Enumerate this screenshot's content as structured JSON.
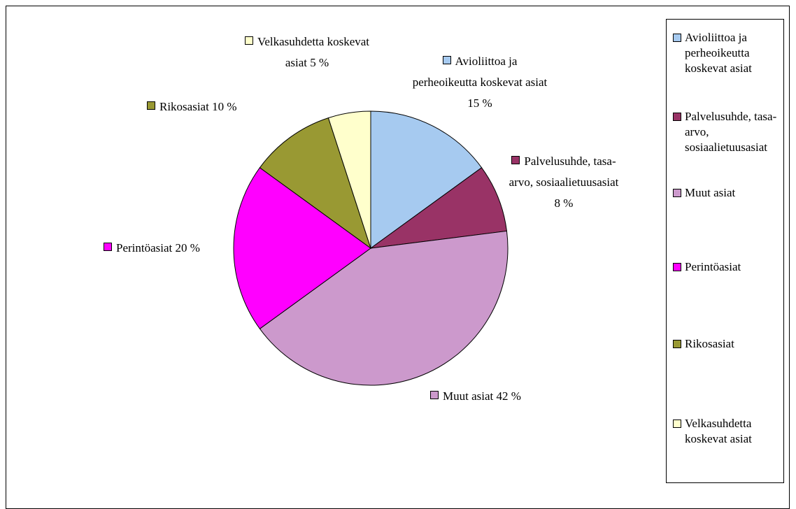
{
  "chart_data": {
    "type": "pie",
    "categories": [
      "Avioliittoa ja perheoikeutta koskevat asiat",
      "Palvelusuhde, tasa-arvo, sosiaalietuusasiat",
      "Muut asiat",
      "Perintöasiat",
      "Rikosasiat",
      "Velkasuhdetta koskevat asiat"
    ],
    "values": [
      15,
      8,
      42,
      20,
      10,
      5
    ],
    "value_labels": [
      "15 %",
      "8 %",
      "42 %",
      "20 %",
      "10 %",
      "5 %"
    ],
    "colors": [
      "#a6caf0",
      "#993366",
      "#cc99cc",
      "#ff00ff",
      "#999933",
      "#ffffcc"
    ],
    "legend": "right"
  }
}
